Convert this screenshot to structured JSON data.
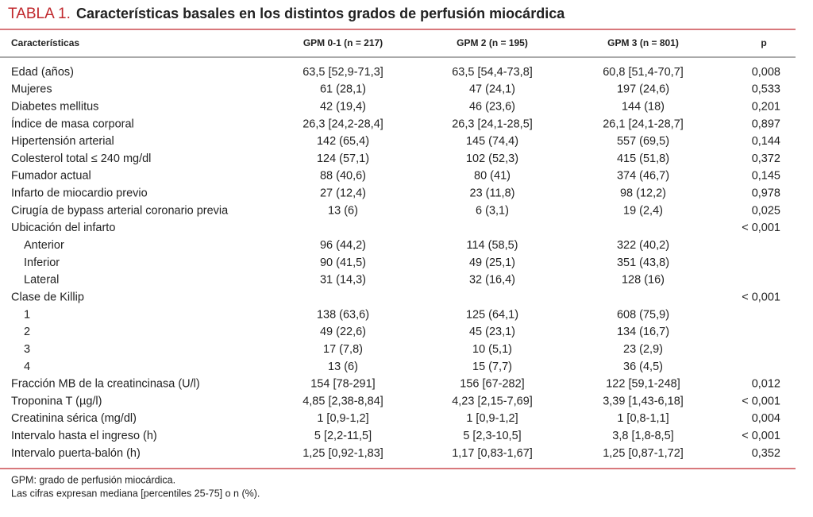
{
  "title": {
    "label": "TABLA 1.",
    "text": "Características basales en los distintos grados de perfusión miocárdica"
  },
  "table": {
    "header": [
      "Características",
      "GPM 0-1 (n = 217)",
      "GPM 2 (n = 195)",
      "GPM 3 (n = 801)",
      "p"
    ],
    "rows": [
      {
        "label": "Edad (años)",
        "values": [
          "63,5 [52,9-71,3]",
          "63,5 [54,4-73,8]",
          "60,8 [51,4-70,7]"
        ],
        "p": "0,008"
      },
      {
        "label": "Mujeres",
        "values": [
          "61 (28,1)",
          "47 (24,1)",
          "197 (24,6)"
        ],
        "p": "0,533"
      },
      {
        "label": "Diabetes mellitus",
        "values": [
          "42 (19,4)",
          "46 (23,6)",
          "144 (18)"
        ],
        "p": "0,201"
      },
      {
        "label": "Índice de masa corporal",
        "values": [
          "26,3 [24,2-28,4]",
          "26,3 [24,1-28,5]",
          "26,1 [24,1-28,7]"
        ],
        "p": "0,897"
      },
      {
        "label": "Hipertensión arterial",
        "values": [
          "142 (65,4)",
          "145 (74,4)",
          "557 (69,5)"
        ],
        "p": "0,144"
      },
      {
        "label": "Colesterol total ≤ 240 mg/dl",
        "values": [
          "124 (57,1)",
          "102 (52,3)",
          "415 (51,8)"
        ],
        "p": "0,372"
      },
      {
        "label": "Fumador actual",
        "values": [
          "88 (40,6)",
          "80 (41)",
          "374 (46,7)"
        ],
        "p": "0,145"
      },
      {
        "label": "Infarto de miocardio previo",
        "values": [
          "27 (12,4)",
          "23 (11,8)",
          "98 (12,2)"
        ],
        "p": "0,978"
      },
      {
        "label": "Cirugía de bypass arterial coronario previa",
        "values": [
          "13 (6)",
          "6 (3,1)",
          "19 (2,4)"
        ],
        "p": "0,025"
      },
      {
        "label": "Ubicación del infarto",
        "p": "< 0,001",
        "subrows": [
          {
            "label": "Anterior",
            "values": [
              "96 (44,2)",
              "114 (58,5)",
              "322 (40,2)"
            ]
          },
          {
            "label": "Inferior",
            "values": [
              "90 (41,5)",
              "49 (25,1)",
              "351 (43,8)"
            ]
          },
          {
            "label": "Lateral",
            "values": [
              "31 (14,3)",
              "32 (16,4)",
              "128 (16)"
            ]
          }
        ]
      },
      {
        "label": "Clase de Killip",
        "p": "< 0,001",
        "subrows": [
          {
            "label": "1",
            "values": [
              "138 (63,6)",
              "125 (64,1)",
              "608 (75,9)"
            ]
          },
          {
            "label": "2",
            "values": [
              "49 (22,6)",
              "45 (23,1)",
              "134 (16,7)"
            ]
          },
          {
            "label": "3",
            "values": [
              "17 (7,8)",
              "10 (5,1)",
              "23 (2,9)"
            ]
          },
          {
            "label": "4",
            "values": [
              "13 (6)",
              "15 (7,7)",
              "36 (4,5)"
            ]
          }
        ]
      },
      {
        "label": "Fracción MB de la creatincinasa (U/l)",
        "values": [
          "154 [78-291]",
          "156 [67-282]",
          "122 [59,1-248]"
        ],
        "p": "0,012"
      },
      {
        "label": "Troponina T (µg/l)",
        "values": [
          "4,85 [2,38-8,84]",
          "4,23 [2,15-7,69]",
          "3,39 [1,43-6,18]"
        ],
        "p": "< 0,001"
      },
      {
        "label": "Creatinina sérica (mg/dl)",
        "values": [
          "1 [0,9-1,2]",
          "1 [0,9-1,2]",
          "1 [0,8-1,1]"
        ],
        "p": "0,004"
      },
      {
        "label": "Intervalo hasta el ingreso (h)",
        "values": [
          "5 [2,2-11,5]",
          "5 [2,3-10,5]",
          "3,8 [1,8-8,5]"
        ],
        "p": "< 0,001"
      },
      {
        "label": "Intervalo puerta-balón (h)",
        "values": [
          "1,25 [0,92-1,83]",
          "1,17 [0,83-1,67]",
          "1,25 [0,87-1,72]"
        ],
        "p": "0,352"
      }
    ]
  },
  "footnotes": [
    "GPM: grado de perfusión miocárdica.",
    "Las cifras expresan mediana [percentiles 25-75] o n (%)."
  ]
}
